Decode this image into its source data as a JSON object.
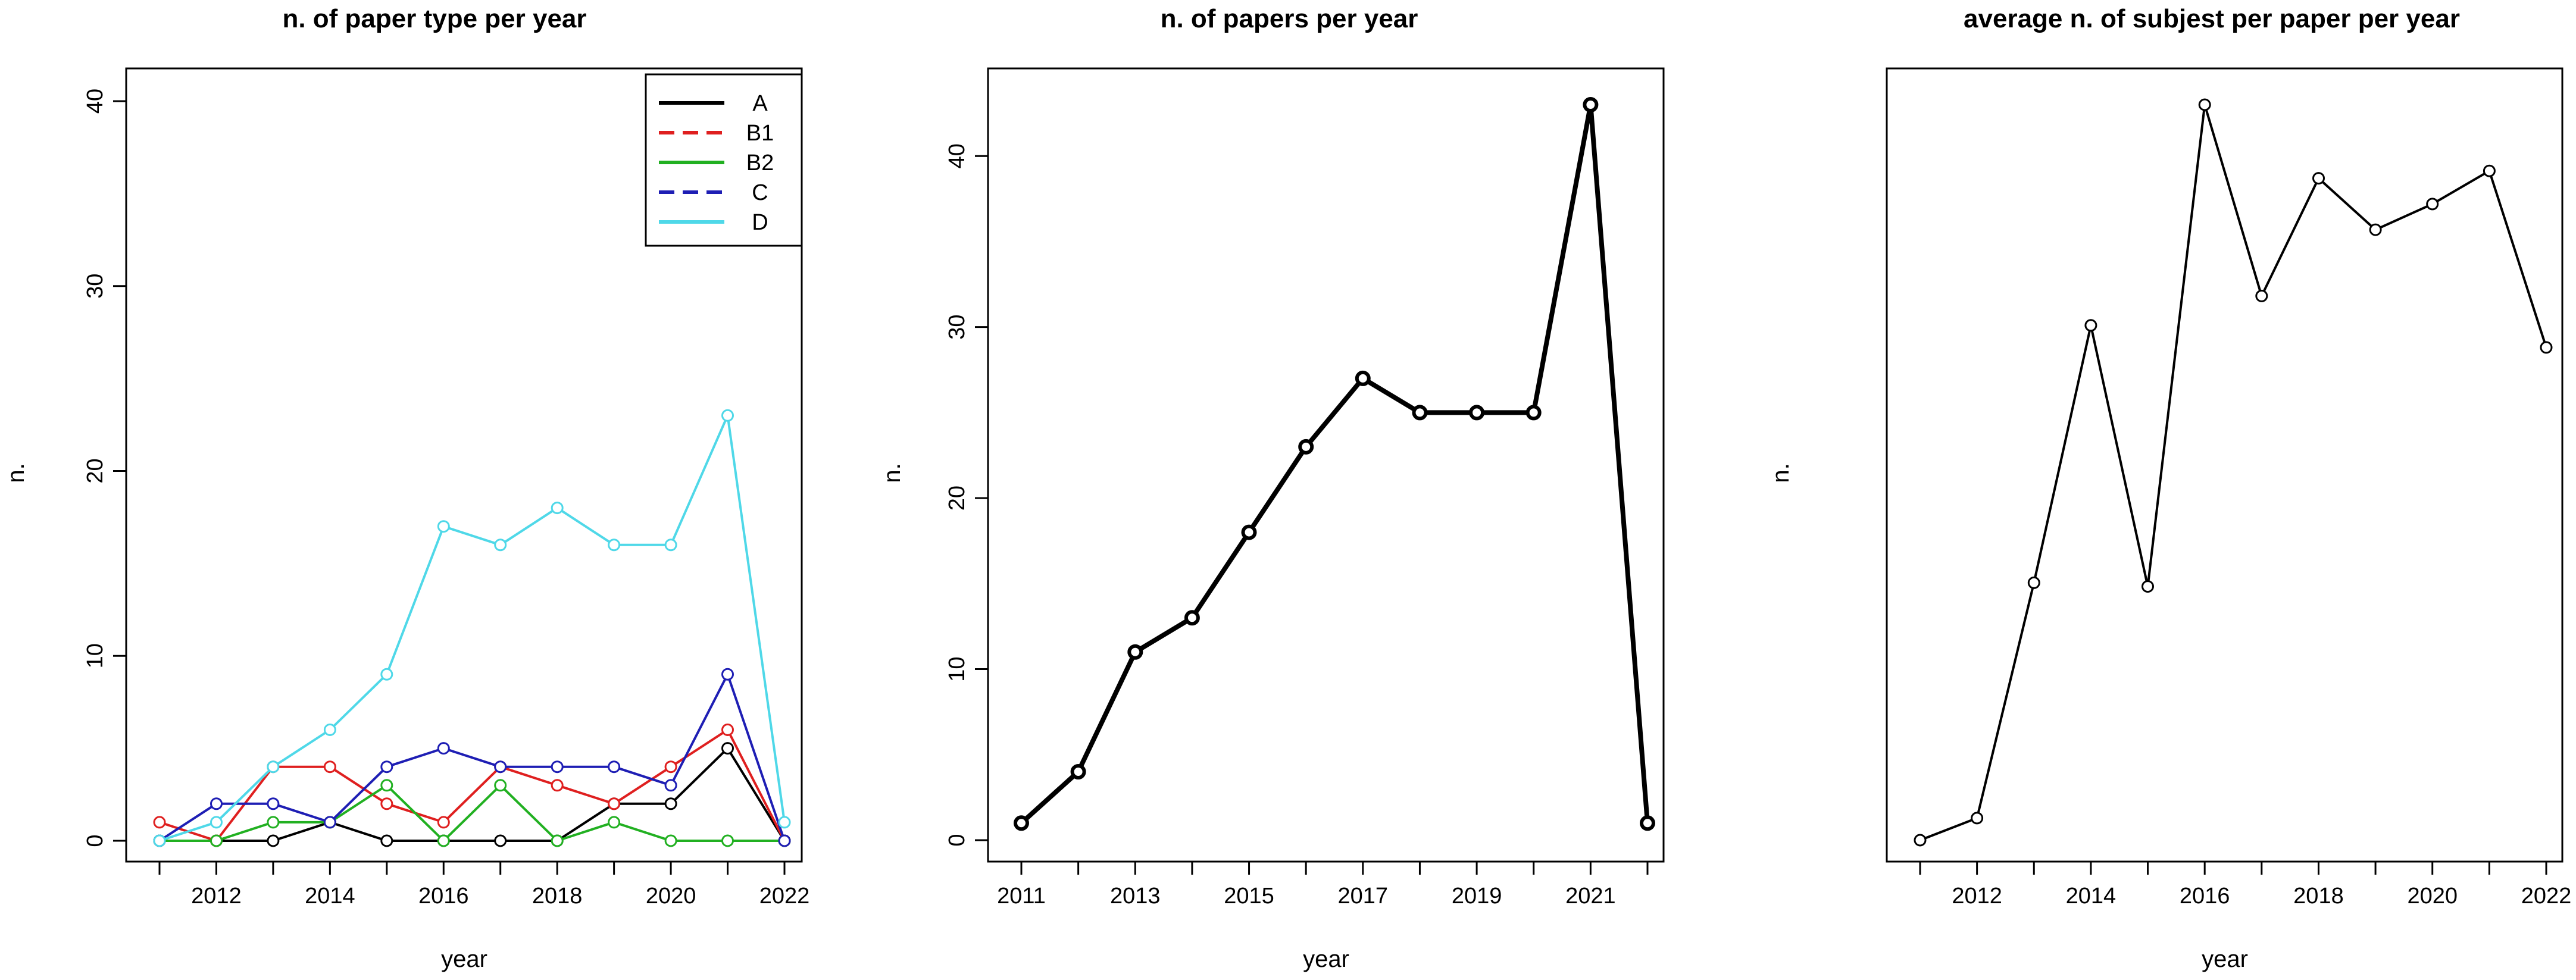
{
  "chart_data": [
    {
      "type": "line",
      "title": "n. of paper type per year",
      "xlabel": "year",
      "ylabel": "n.",
      "xlim": [
        2011,
        2022
      ],
      "ylim": [
        0,
        40
      ],
      "x": [
        2011,
        2012,
        2013,
        2014,
        2015,
        2016,
        2017,
        2018,
        2019,
        2020,
        2021,
        2022
      ],
      "x_ticks": [
        2012,
        2014,
        2016,
        2018,
        2020,
        2022
      ],
      "y_ticks": [
        0,
        10,
        20,
        30,
        40
      ],
      "legend_position": "top-right",
      "series": [
        {
          "name": "A",
          "color": "#000000",
          "dash": "solid",
          "values": [
            0,
            0,
            0,
            1,
            0,
            0,
            0,
            0,
            2,
            2,
            5,
            0
          ]
        },
        {
          "name": "B1",
          "color": "#df1f1f",
          "dash": "dashed",
          "values": [
            1,
            0,
            4,
            4,
            2,
            1,
            4,
            3,
            2,
            4,
            6,
            0
          ]
        },
        {
          "name": "B2",
          "color": "#21b021",
          "dash": "solid",
          "values": [
            0,
            0,
            1,
            1,
            3,
            0,
            3,
            0,
            1,
            0,
            0,
            0
          ]
        },
        {
          "name": "C",
          "color": "#1e1eb4",
          "dash": "dashed",
          "values": [
            0,
            2,
            2,
            1,
            4,
            5,
            4,
            4,
            4,
            3,
            9,
            0
          ]
        },
        {
          "name": "D",
          "color": "#4fd8e8",
          "dash": "solid",
          "values": [
            0,
            1,
            4,
            6,
            9,
            17,
            16,
            18,
            16,
            16,
            23,
            1
          ]
        }
      ]
    },
    {
      "type": "line",
      "title": "n. of papers per year",
      "xlabel": "year",
      "ylabel": "n.",
      "xlim": [
        2011,
        2022
      ],
      "ylim": [
        0,
        43
      ],
      "x": [
        2011,
        2012,
        2013,
        2014,
        2015,
        2016,
        2017,
        2018,
        2019,
        2020,
        2021,
        2022
      ],
      "x_ticks": [
        2011,
        2013,
        2015,
        2017,
        2019,
        2021
      ],
      "y_ticks": [
        0,
        10,
        20,
        30,
        40
      ],
      "series": [
        {
          "color": "#000000",
          "values": [
            1,
            4,
            11,
            13,
            18,
            23,
            27,
            25,
            25,
            25,
            43,
            1
          ]
        }
      ]
    },
    {
      "type": "line",
      "title": "average n. of subjest per paper per year",
      "xlabel": "year",
      "ylabel": "n.",
      "xlim": [
        2011,
        2022
      ],
      "ylim": [
        0,
        1
      ],
      "x": [
        2011,
        2012,
        2013,
        2014,
        2015,
        2016,
        2017,
        2018,
        2019,
        2020,
        2021,
        2022
      ],
      "x_ticks": [
        2012,
        2014,
        2016,
        2018,
        2020,
        2022
      ],
      "y_ticks": [],
      "series": [
        {
          "color": "#000000",
          "values": [
            0.0,
            0.03,
            0.35,
            0.7,
            0.345,
            1.0,
            0.74,
            0.9,
            0.83,
            0.865,
            0.91,
            0.67
          ]
        }
      ]
    }
  ]
}
